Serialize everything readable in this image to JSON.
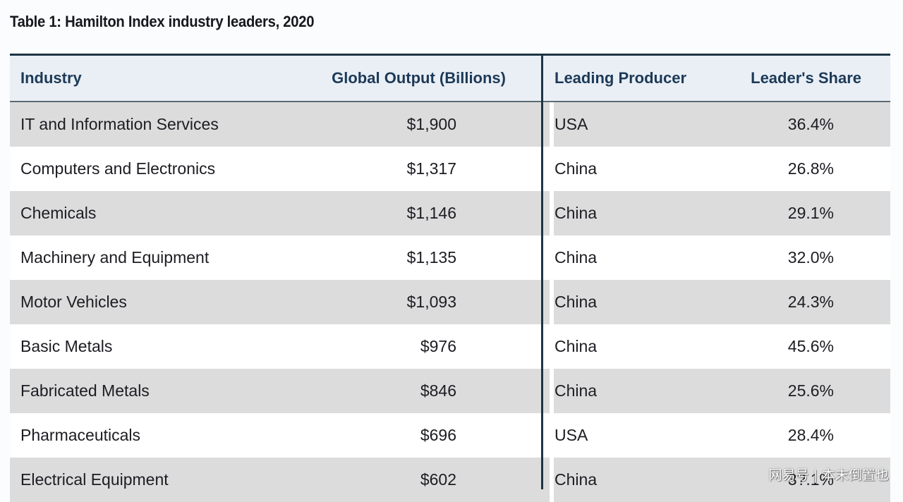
{
  "title": "Table 1: Hamilton Index industry leaders, 2020",
  "table": {
    "headers": {
      "industry": "Industry",
      "output": "Global Output (Billions)",
      "producer": "Leading Producer",
      "share": "Leader's Share"
    },
    "rows": [
      {
        "industry": "IT and Information Services",
        "output": "$1,900",
        "producer": "USA",
        "share": "36.4%"
      },
      {
        "industry": "Computers and Electronics",
        "output": "$1,317",
        "producer": "China",
        "share": "26.8%"
      },
      {
        "industry": "Chemicals",
        "output": "$1,146",
        "producer": "China",
        "share": "29.1%"
      },
      {
        "industry": "Machinery and Equipment",
        "output": "$1,135",
        "producer": "China",
        "share": "32.0%"
      },
      {
        "industry": "Motor Vehicles",
        "output": "$1,093",
        "producer": "China",
        "share": "24.3%"
      },
      {
        "industry": "Basic Metals",
        "output": "$976",
        "producer": "China",
        "share": "45.6%"
      },
      {
        "industry": "Fabricated Metals",
        "output": "$846",
        "producer": "China",
        "share": "25.6%"
      },
      {
        "industry": "Pharmaceuticals",
        "output": "$696",
        "producer": "USA",
        "share": "28.4%"
      },
      {
        "industry": "Electrical Equipment",
        "output": "$602",
        "producer": "China",
        "share": "3?.1%"
      }
    ]
  },
  "colors": {
    "header_text": "#1d3a57",
    "rule": "#1d3444",
    "shade_row": "#dcdcdd",
    "header_bg": "#eaeff6"
  },
  "watermark": "网易号 | 本末倒置也"
}
